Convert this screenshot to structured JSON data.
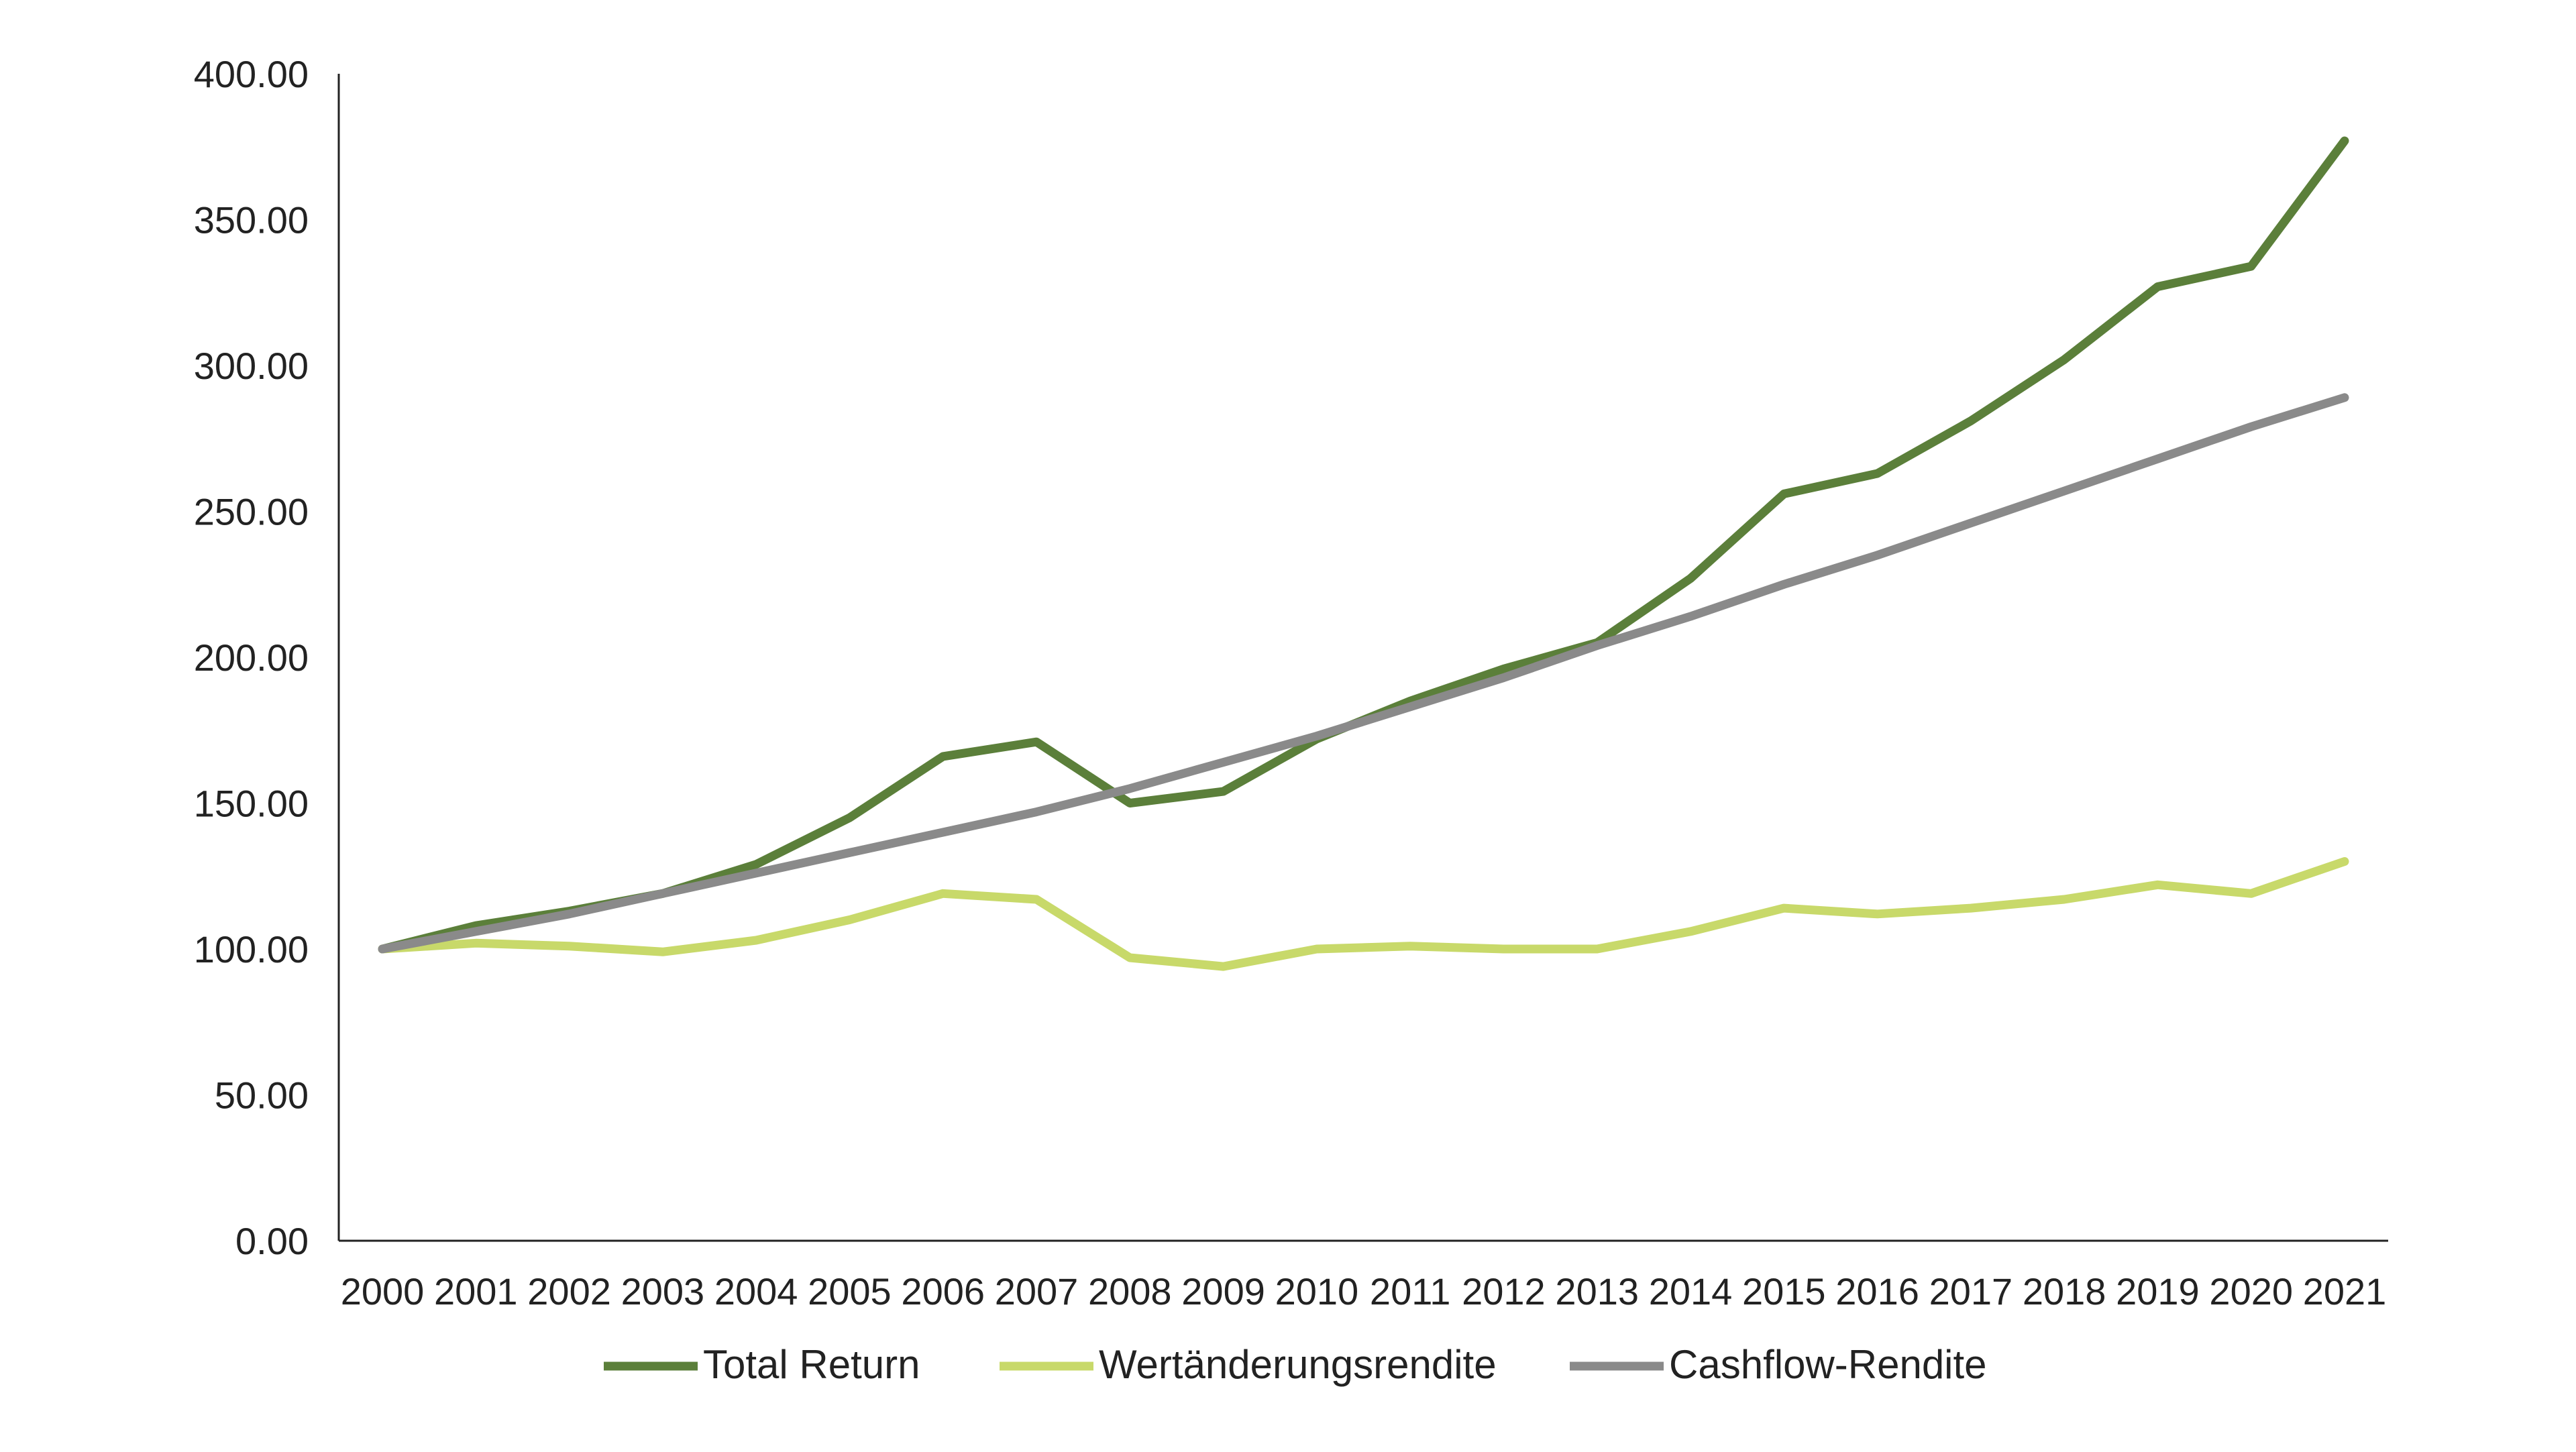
{
  "chart_data": {
    "type": "line",
    "title": "",
    "xlabel": "",
    "ylabel": "",
    "ylim": [
      0,
      400
    ],
    "yticks": [
      "0.00",
      "50.00",
      "100.00",
      "150.00",
      "200.00",
      "250.00",
      "300.00",
      "350.00",
      "400.00"
    ],
    "x": [
      "2000",
      "2001",
      "2002",
      "2003",
      "2004",
      "2005",
      "2006",
      "2007",
      "2008",
      "2009",
      "2010",
      "2011",
      "2012",
      "2013",
      "2014",
      "2015",
      "2016",
      "2017",
      "2018",
      "2019",
      "2020",
      "2021"
    ],
    "grid": false,
    "legend_position": "bottom",
    "series": [
      {
        "name": "Total Return",
        "color": "#5b7f3a",
        "values": [
          100,
          108,
          113,
          119,
          129,
          145,
          166,
          171,
          150,
          154,
          172,
          185,
          196,
          205,
          227,
          256,
          263,
          281,
          302,
          327,
          334,
          377
        ]
      },
      {
        "name": "Wertänderungsrendite",
        "color": "#c8d96a",
        "values": [
          100,
          102,
          101,
          99,
          103,
          110,
          119,
          117,
          97,
          94,
          100,
          101,
          100,
          100,
          106,
          114,
          112,
          114,
          117,
          122,
          119,
          130
        ]
      },
      {
        "name": "Cashflow-Rendite",
        "color": "#8a8a8a",
        "values": [
          100,
          106,
          112,
          119,
          126,
          133,
          140,
          147,
          155,
          164,
          173,
          183,
          193,
          204,
          214,
          225,
          235,
          246,
          257,
          268,
          279,
          289
        ]
      }
    ]
  }
}
